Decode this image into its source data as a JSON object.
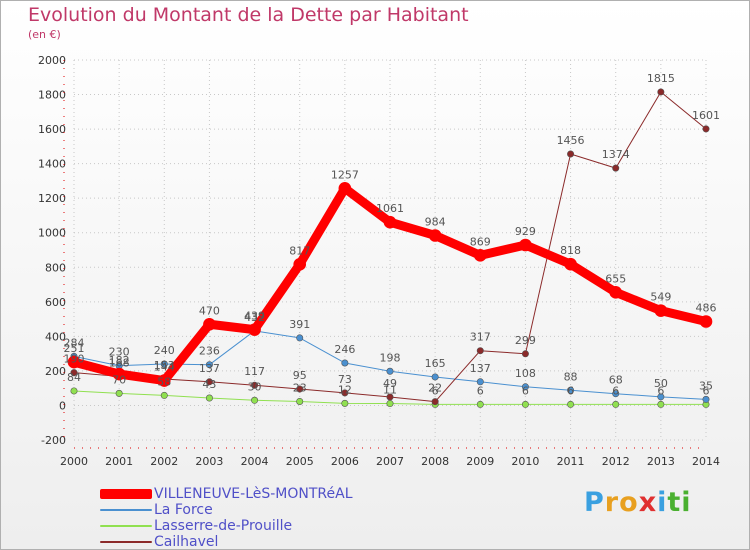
{
  "chart_data": {
    "type": "line",
    "title": "Evolution du Montant de la Dette par Habitant",
    "subtitle": "(en €)",
    "x": [
      "2000",
      "2001",
      "2002",
      "2003",
      "2004",
      "2005",
      "2006",
      "2007",
      "2008",
      "2009",
      "2010",
      "2011",
      "2012",
      "2013",
      "2014"
    ],
    "ylim": [
      -200,
      2000
    ],
    "yticks": [
      -200,
      0,
      200,
      400,
      600,
      800,
      1000,
      1200,
      1400,
      1600,
      1800,
      2000
    ],
    "grid": true,
    "legend_position": "bottom-left",
    "series": [
      {
        "name": "VILLENEUVE-LèS-MONTRéAL",
        "color": "#ff0000",
        "labels": [
          "251",
          "182",
          "144",
          "470",
          "439",
          "817",
          "1257",
          "1061",
          "984",
          "869",
          "929",
          "818",
          "655",
          "549",
          "486"
        ],
        "values": [
          251,
          182,
          144,
          470,
          439,
          817,
          1257,
          1061,
          984,
          869,
          929,
          818,
          655,
          549,
          486
        ]
      },
      {
        "name": "La Force",
        "color": "#4a90d0",
        "labels": [
          "284",
          "230",
          "240",
          "236",
          "432",
          "391",
          "246",
          "198",
          "165",
          "137",
          "108",
          "88",
          "68",
          "50",
          "35"
        ],
        "values": [
          284,
          230,
          240,
          236,
          432,
          391,
          246,
          198,
          165,
          137,
          108,
          88,
          68,
          50,
          35
        ]
      },
      {
        "name": "Lasserre-de-Prouille",
        "color": "#90e050",
        "labels": [
          "84",
          "70",
          "58",
          "43",
          "30",
          "23",
          "12",
          "11",
          "6",
          "6",
          "6",
          "6",
          "6",
          "6",
          "6"
        ],
        "values": [
          84,
          70,
          58,
          43,
          30,
          23,
          12,
          11,
          6,
          6,
          6,
          6,
          6,
          6,
          6
        ]
      },
      {
        "name": "Cailhavel",
        "color": "#8b2a2a",
        "labels": [
          "190",
          "168",
          "153",
          "137",
          "117",
          "95",
          "73",
          "49",
          "22",
          "317",
          "299",
          "1456",
          "1374",
          "1815",
          "1601"
        ],
        "values": [
          190,
          168,
          153,
          137,
          117,
          95,
          73,
          49,
          22,
          317,
          299,
          1456,
          1374,
          1815,
          1601
        ]
      }
    ]
  },
  "logo": {
    "letters": [
      "P",
      "r",
      "o",
      "x",
      "i",
      "t",
      "i"
    ],
    "colors": [
      "#3aa0e0",
      "#e8a020",
      "#e8a020",
      "#e03030",
      "#3aa0e0",
      "#4ab030",
      "#4ab030"
    ]
  }
}
